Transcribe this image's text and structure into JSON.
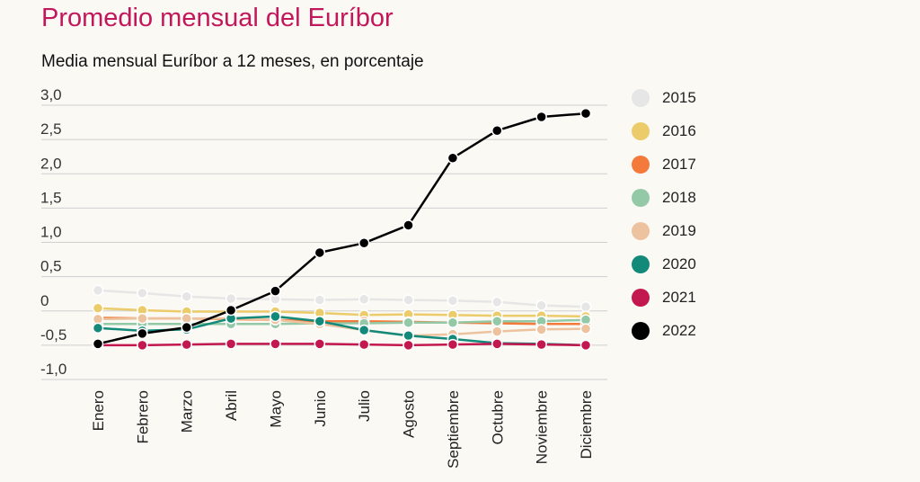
{
  "title": "Promedio mensual del Euríbor",
  "subtitle": "Media mensual Euríbor a 12 meses, en porcentaje",
  "chart_data": {
    "type": "line",
    "title": "Promedio mensual del Euríbor",
    "subtitle": "Media mensual Euríbor a 12 meses, en porcentaje",
    "xlabel": "",
    "ylabel": "",
    "ylim": [
      -1.0,
      3.0
    ],
    "ytick_values": [
      3.0,
      2.5,
      2.0,
      1.5,
      1.0,
      0.5,
      0,
      -0.5,
      -1.0
    ],
    "ytick_labels": [
      "3,0",
      "2,5",
      "2,0",
      "1,5",
      "1,0",
      "0,5",
      "0",
      "-0,5",
      "-1,0"
    ],
    "grid": true,
    "legend_position": "right",
    "categories": [
      "Enero",
      "Febrero",
      "Marzo",
      "Abril",
      "Mayo",
      "Junio",
      "Julio",
      "Agosto",
      "Septiembre",
      "Octubre",
      "Noviembre",
      "Diciembre"
    ],
    "series": [
      {
        "name": "2015",
        "color": "#e6e6e6",
        "values": [
          0.3,
          0.26,
          0.21,
          0.18,
          0.17,
          0.16,
          0.17,
          0.16,
          0.15,
          0.13,
          0.08,
          0.06
        ]
      },
      {
        "name": "2016",
        "color": "#eccb6a",
        "values": [
          0.04,
          0.01,
          -0.01,
          -0.01,
          -0.01,
          -0.03,
          -0.06,
          -0.05,
          -0.06,
          -0.07,
          -0.07,
          -0.08
        ]
      },
      {
        "name": "2017",
        "color": "#f37a3b",
        "values": [
          -0.1,
          -0.11,
          -0.11,
          -0.12,
          -0.13,
          -0.15,
          -0.15,
          -0.16,
          -0.17,
          -0.18,
          -0.19,
          -0.19
        ]
      },
      {
        "name": "2018",
        "color": "#93c9a6",
        "values": [
          -0.19,
          -0.19,
          -0.19,
          -0.19,
          -0.19,
          -0.18,
          -0.18,
          -0.17,
          -0.17,
          -0.15,
          -0.15,
          -0.13
        ]
      },
      {
        "name": "2019",
        "color": "#ecc39e",
        "values": [
          -0.12,
          -0.11,
          -0.11,
          -0.11,
          -0.13,
          -0.19,
          -0.28,
          -0.36,
          -0.34,
          -0.3,
          -0.27,
          -0.26
        ]
      },
      {
        "name": "2020",
        "color": "#13897a",
        "values": [
          -0.25,
          -0.29,
          -0.27,
          -0.11,
          -0.08,
          -0.15,
          -0.28,
          -0.36,
          -0.41,
          -0.47,
          -0.48,
          -0.5
        ]
      },
      {
        "name": "2021",
        "color": "#c2184f",
        "values": [
          -0.5,
          -0.5,
          -0.49,
          -0.48,
          -0.48,
          -0.48,
          -0.49,
          -0.5,
          -0.49,
          -0.48,
          -0.49,
          -0.5
        ]
      },
      {
        "name": "2022",
        "color": "#000000",
        "values": [
          -0.48,
          -0.33,
          -0.24,
          0.01,
          0.29,
          0.85,
          0.99,
          1.25,
          2.23,
          2.63,
          2.83,
          2.88
        ]
      }
    ]
  }
}
